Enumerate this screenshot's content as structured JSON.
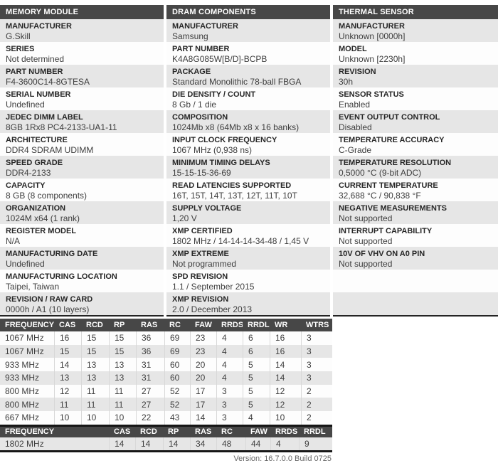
{
  "colors": {
    "header_bar": "#474747",
    "row_gray": "#e6e6e6",
    "row_white": "#fdfdfd",
    "frame_dark": "#161616",
    "label_text": "#262626",
    "value_text": "#3e3e3e"
  },
  "panels": [
    {
      "id": "memory-module",
      "title": "MEMORY MODULE",
      "filler_rows": 0,
      "items": [
        {
          "label": "MANUFACTURER",
          "value": "G.Skill"
        },
        {
          "label": "SERIES",
          "value": "Not determined"
        },
        {
          "label": "PART NUMBER",
          "value": "F4-3600C14-8GTESA"
        },
        {
          "label": "SERIAL NUMBER",
          "value": "Undefined"
        },
        {
          "label": "JEDEC DIMM LABEL",
          "value": "8GB 1Rx8 PC4-2133-UA1-11"
        },
        {
          "label": "ARCHITECTURE",
          "value": "DDR4 SDRAM UDIMM"
        },
        {
          "label": "SPEED GRADE",
          "value": "DDR4-2133"
        },
        {
          "label": "CAPACITY",
          "value": "8 GB (8 components)"
        },
        {
          "label": "ORGANIZATION",
          "value": "1024M x64 (1 rank)"
        },
        {
          "label": "REGISTER MODEL",
          "value": "N/A"
        },
        {
          "label": "MANUFACTURING DATE",
          "value": "Undefined"
        },
        {
          "label": "MANUFACTURING LOCATION",
          "value": "Taipei, Taiwan"
        },
        {
          "label": "REVISION / RAW CARD",
          "value": "0000h / A1 (10 layers)"
        }
      ]
    },
    {
      "id": "dram-components",
      "title": "DRAM COMPONENTS",
      "filler_rows": 0,
      "items": [
        {
          "label": "MANUFACTURER",
          "value": "Samsung"
        },
        {
          "label": "PART NUMBER",
          "value": "K4A8G085W[B/D]-BCPB"
        },
        {
          "label": "PACKAGE",
          "value": "Standard Monolithic 78-ball FBGA"
        },
        {
          "label": "DIE DENSITY / COUNT",
          "value": "8 Gb / 1 die"
        },
        {
          "label": "COMPOSITION",
          "value": "1024Mb x8 (64Mb x8 x 16 banks)"
        },
        {
          "label": "INPUT CLOCK FREQUENCY",
          "value": "1067 MHz (0,938 ns)"
        },
        {
          "label": "MINIMUM TIMING DELAYS",
          "value": "15-15-15-36-69"
        },
        {
          "label": "READ LATENCIES SUPPORTED",
          "value": "16T, 15T, 14T, 13T, 12T, 11T, 10T"
        },
        {
          "label": "SUPPLY VOLTAGE",
          "value": "1,20 V"
        },
        {
          "label": "XMP CERTIFIED",
          "value": "1802 MHz / 14-14-14-34-48 / 1,45 V"
        },
        {
          "label": "XMP EXTREME",
          "value": "Not programmed"
        },
        {
          "label": "SPD REVISION",
          "value": "1.1 / September 2015"
        },
        {
          "label": "XMP REVISION",
          "value": "2.0 / December 2013"
        }
      ]
    },
    {
      "id": "thermal-sensor",
      "title": "THERMAL SENSOR",
      "filler_rows": 2,
      "items": [
        {
          "label": "MANUFACTURER",
          "value": "Unknown [0000h]"
        },
        {
          "label": "MODEL",
          "value": "Unknown [2230h]"
        },
        {
          "label": "REVISION",
          "value": "30h"
        },
        {
          "label": "SENSOR STATUS",
          "value": "Enabled"
        },
        {
          "label": "EVENT OUTPUT CONTROL",
          "value": "Disabled"
        },
        {
          "label": "TEMPERATURE ACCURACY",
          "value": "C-Grade"
        },
        {
          "label": "TEMPERATURE RESOLUTION",
          "value": "0,5000 °C (9-bit ADC)"
        },
        {
          "label": "CURRENT TEMPERATURE",
          "value": "32,688 °C / 90,838 °F"
        },
        {
          "label": "NEGATIVE MEASUREMENTS",
          "value": "Not supported"
        },
        {
          "label": "INTERRUPT CAPABILITY",
          "value": "Not supported"
        },
        {
          "label": "10V OF VHV ON A0 PIN",
          "value": "Not supported"
        }
      ]
    }
  ],
  "jedec_table": {
    "columns": [
      "FREQUENCY",
      "CAS",
      "RCD",
      "RP",
      "RAS",
      "RC",
      "FAW",
      "RRDS",
      "RRDL",
      "WR",
      "WTRS"
    ],
    "rows": [
      [
        "1067 MHz",
        "16",
        "15",
        "15",
        "36",
        "69",
        "23",
        "4",
        "6",
        "16",
        "3"
      ],
      [
        "1067 MHz",
        "15",
        "15",
        "15",
        "36",
        "69",
        "23",
        "4",
        "6",
        "16",
        "3"
      ],
      [
        "933 MHz",
        "14",
        "13",
        "13",
        "31",
        "60",
        "20",
        "4",
        "5",
        "14",
        "3"
      ],
      [
        "933 MHz",
        "13",
        "13",
        "13",
        "31",
        "60",
        "20",
        "4",
        "5",
        "14",
        "3"
      ],
      [
        "800 MHz",
        "12",
        "11",
        "11",
        "27",
        "52",
        "17",
        "3",
        "5",
        "12",
        "2"
      ],
      [
        "800 MHz",
        "11",
        "11",
        "11",
        "27",
        "52",
        "17",
        "3",
        "5",
        "12",
        "2"
      ],
      [
        "667 MHz",
        "10",
        "10",
        "10",
        "22",
        "43",
        "14",
        "3",
        "4",
        "10",
        "2"
      ]
    ]
  },
  "xmp_table": {
    "columns": [
      "FREQUENCY",
      "CAS",
      "RCD",
      "RP",
      "RAS",
      "RC",
      "FAW",
      "RRDS",
      "RRDL"
    ],
    "rows": [
      [
        "1802 MHz",
        "14",
        "14",
        "14",
        "34",
        "48",
        "44",
        "4",
        "9"
      ]
    ]
  },
  "footer": {
    "version": "Version: 16.7.0.0 Build 0725"
  }
}
